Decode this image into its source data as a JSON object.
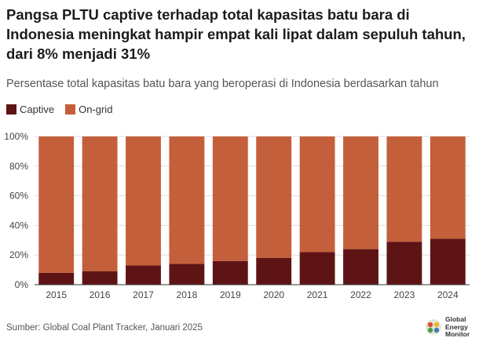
{
  "header": {
    "title": "Pangsa PLTU captive terhadap total kapasitas batu bara di Indonesia meningkat hampir empat kali lipat dalam sepuluh tahun, dari 8% menjadi 31%",
    "subtitle": "Persentase total kapasitas batu bara yang beroperasi di Indonesia berdasarkan tahun"
  },
  "footer": {
    "source": "Sumber: Global Coal Plant Tracker, Januari 2025",
    "logo_lines": [
      "Global",
      "Energy",
      "Monitor"
    ]
  },
  "colors": {
    "captive": "#5e1415",
    "ongrid": "#c45f3b",
    "axis": "#333333",
    "grid": "#dddddd"
  },
  "chart_data": {
    "type": "bar",
    "stacked": true,
    "categories": [
      "2015",
      "2016",
      "2017",
      "2018",
      "2019",
      "2020",
      "2021",
      "2022",
      "2023",
      "2024"
    ],
    "series": [
      {
        "name": "Captive",
        "values": [
          8,
          9,
          13,
          14,
          16,
          18,
          22,
          24,
          29,
          31
        ]
      },
      {
        "name": "On-grid",
        "values": [
          92,
          91,
          87,
          86,
          84,
          82,
          78,
          76,
          71,
          69
        ]
      }
    ],
    "y_ticks": [
      "0%",
      "20%",
      "40%",
      "60%",
      "80%",
      "100%"
    ],
    "ylim": [
      0,
      100
    ],
    "xlabel": "",
    "ylabel": "",
    "legend_position": "top-left",
    "grid": true
  }
}
